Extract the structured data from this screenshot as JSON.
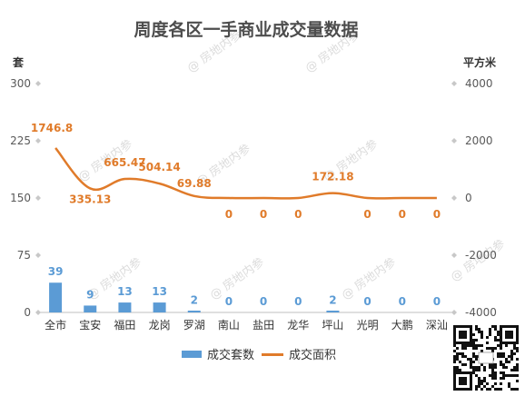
{
  "chart_data": {
    "type": "bar",
    "title": "周度各区一手商业成交量数据",
    "categories": [
      "全市",
      "宝安",
      "福田",
      "龙岗",
      "罗湖",
      "南山",
      "盐田",
      "龙华",
      "坪山",
      "光明",
      "大鹏",
      "深汕"
    ],
    "series": [
      {
        "name": "成交套数",
        "type": "bar",
        "axis": "left",
        "color": "#5b9bd5",
        "values": [
          39,
          9,
          13,
          13,
          2,
          0,
          0,
          0,
          2,
          0,
          0,
          0
        ],
        "labels": [
          "39",
          "9",
          "13",
          "13",
          "2",
          "0",
          "0",
          "0",
          "2",
          "0",
          "0",
          "0"
        ]
      },
      {
        "name": "成交面积",
        "type": "line",
        "axis": "right",
        "color": "#e07b2a",
        "values": [
          1746.8,
          335.13,
          665.47,
          504.14,
          69.88,
          0,
          0,
          0,
          172.18,
          0,
          0,
          0
        ],
        "labels": [
          "1746.8",
          "335.13",
          "665.47",
          "504.14",
          "69.88",
          "0",
          "0",
          "0",
          "172.18",
          "0",
          "0",
          "0"
        ]
      }
    ],
    "y_left": {
      "label": "套",
      "range": [
        0,
        300
      ],
      "ticks": [
        "0",
        "75",
        "150",
        "225",
        "300"
      ]
    },
    "y_right": {
      "label": "平方米",
      "range": [
        -4000,
        4000
      ],
      "ticks": [
        "-4000",
        "-2000",
        "0",
        "2000",
        "4000"
      ]
    },
    "grid": false,
    "legend": "bottom"
  },
  "watermark": "@ 房地内参"
}
